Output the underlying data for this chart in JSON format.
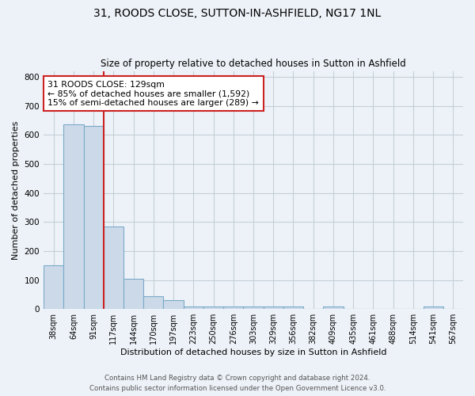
{
  "title1": "31, ROODS CLOSE, SUTTON-IN-ASHFIELD, NG17 1NL",
  "title2": "Size of property relative to detached houses in Sutton in Ashfield",
  "xlabel": "Distribution of detached houses by size in Sutton in Ashfield",
  "ylabel": "Number of detached properties",
  "categories": [
    "38sqm",
    "64sqm",
    "91sqm",
    "117sqm",
    "144sqm",
    "170sqm",
    "197sqm",
    "223sqm",
    "250sqm",
    "276sqm",
    "303sqm",
    "329sqm",
    "356sqm",
    "382sqm",
    "409sqm",
    "435sqm",
    "461sqm",
    "488sqm",
    "514sqm",
    "541sqm",
    "567sqm"
  ],
  "values": [
    150,
    635,
    630,
    285,
    103,
    45,
    30,
    10,
    10,
    10,
    10,
    10,
    10,
    0,
    8,
    0,
    0,
    0,
    0,
    8,
    0
  ],
  "bar_color": "#ccd9e8",
  "bar_edge_color": "#7aaac8",
  "line_x_index": 3.0,
  "line_color": "#cc2222",
  "annotation_text": "31 ROODS CLOSE: 129sqm\n← 85% of detached houses are smaller (1,592)\n15% of semi-detached houses are larger (289) →",
  "annotation_box_color": "white",
  "annotation_box_edge_color": "#cc2222",
  "ylim": [
    0,
    820
  ],
  "yticks": [
    0,
    100,
    200,
    300,
    400,
    500,
    600,
    700,
    800
  ],
  "footer1": "Contains HM Land Registry data © Crown copyright and database right 2024.",
  "footer2": "Contains public sector information licensed under the Open Government Licence v3.0.",
  "background_color": "#edf2f8",
  "grid_color": "#c5cfd8"
}
